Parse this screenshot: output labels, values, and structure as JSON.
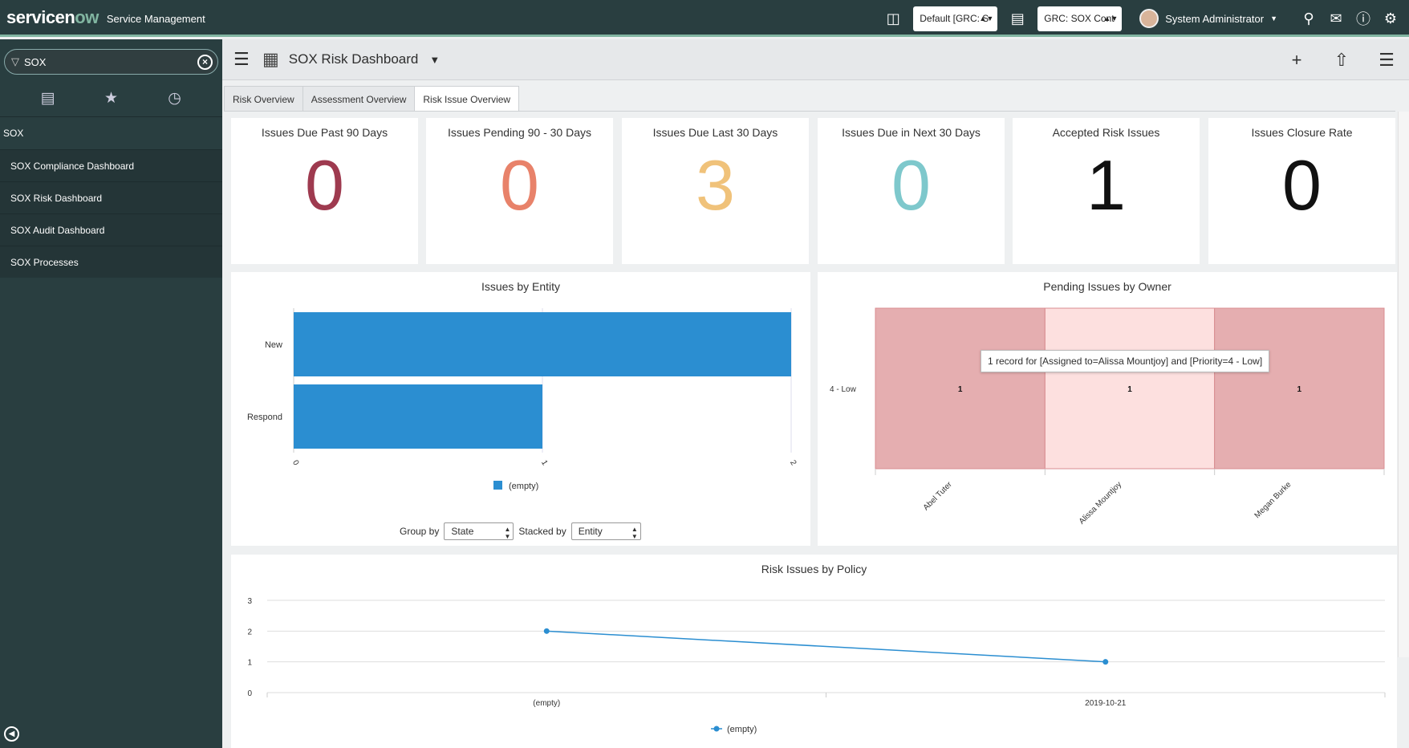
{
  "header": {
    "logo_main": "servicen",
    "logo_accent": "ow",
    "product": "Service Management",
    "domain_select": "Default [GRC: S",
    "app_select": "GRC: SOX Cont",
    "user_name": "System Administrator"
  },
  "sidebar": {
    "filter_value": "SOX",
    "section_title": "SOX",
    "items": [
      {
        "label": "SOX Compliance Dashboard"
      },
      {
        "label": "SOX Risk Dashboard"
      },
      {
        "label": "SOX Audit Dashboard"
      },
      {
        "label": "SOX Processes"
      }
    ]
  },
  "dashboard": {
    "title": "SOX Risk Dashboard",
    "tabs": [
      {
        "label": "Risk Overview"
      },
      {
        "label": "Assessment Overview"
      },
      {
        "label": "Risk Issue Overview"
      }
    ]
  },
  "tiles": [
    {
      "title": "Issues Due Past 90 Days",
      "value": "0",
      "color": "#9e3a4f"
    },
    {
      "title": "Issues Pending 90 - 30 Days",
      "value": "0",
      "color": "#e8826a"
    },
    {
      "title": "Issues Due Last 30 Days",
      "value": "3",
      "color": "#f0c27a"
    },
    {
      "title": "Issues Due in Next 30 Days",
      "value": "0",
      "color": "#7ec8cc"
    },
    {
      "title": "Accepted Risk Issues",
      "value": "1",
      "color": "#111111"
    },
    {
      "title": "Issues Closure Rate",
      "value": "0",
      "color": "#111111"
    }
  ],
  "entity_chart": {
    "title": "Issues by Entity",
    "group_by_label": "Group by",
    "group_by_value": "State",
    "stacked_by_label": "Stacked by",
    "stacked_by_value": "Entity"
  },
  "owner_chart": {
    "title": "Pending Issues by Owner",
    "tooltip": "1 record for [Assigned to=Alissa Mountjoy] and [Priority=4 - Low]"
  },
  "policy_chart": {
    "title": "Risk Issues by Policy"
  },
  "chart_data": [
    {
      "type": "bar",
      "orientation": "horizontal",
      "title": "Issues by Entity",
      "categories": [
        "New",
        "Respond"
      ],
      "series": [
        {
          "name": "(empty)",
          "values": [
            2,
            1
          ]
        }
      ],
      "xlim": [
        0,
        2
      ],
      "ticks": [
        "0",
        "1",
        "2"
      ],
      "legend": "bottom",
      "color": "#2b8ed1"
    },
    {
      "type": "heatmap",
      "title": "Pending Issues by Owner",
      "x": [
        "Abel Tuter",
        "Alissa Mountjoy",
        "Megan Burke"
      ],
      "y": [
        "4 - Low"
      ],
      "values": [
        [
          1,
          1,
          1
        ]
      ]
    },
    {
      "type": "line",
      "title": "Risk Issues by Policy",
      "x": [
        "(empty)",
        "2019-10-21"
      ],
      "series": [
        {
          "name": "(empty)",
          "values": [
            2,
            1
          ]
        }
      ],
      "ylim": [
        0,
        3
      ],
      "yticks": [
        "0",
        "1",
        "2",
        "3"
      ],
      "legend": "bottom",
      "color": "#2b8ed1"
    }
  ]
}
